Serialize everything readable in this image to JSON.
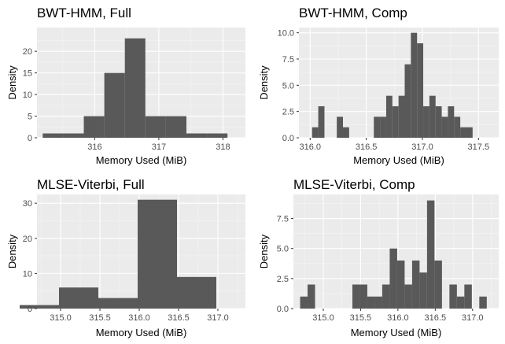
{
  "chart_data": [
    {
      "type": "bar",
      "title": "BWT-HMM, Full",
      "xlabel": "Memory Used (MiB)",
      "ylabel": "Density",
      "xlim": [
        315.1,
        318.35
      ],
      "ylim": [
        0,
        25.5
      ],
      "xticks": [
        316,
        317,
        318
      ],
      "xtick_labels": [
        "316",
        "317",
        "318"
      ],
      "yticks": [
        0,
        5,
        10,
        15,
        20
      ],
      "ytick_labels": [
        "0",
        "5",
        "10",
        "15",
        "20"
      ],
      "bin_width": 0.32,
      "x": [
        315.35,
        315.67,
        315.99,
        316.31,
        316.63,
        316.95,
        317.27,
        317.59,
        317.91
      ],
      "values": [
        1,
        1,
        5,
        15,
        23,
        5,
        5,
        1,
        1
      ],
      "grid": true
    },
    {
      "type": "bar",
      "title": "BWT-HMM, Comp",
      "xlabel": "Memory Used (MiB)",
      "ylabel": "Density",
      "xlim": [
        315.9,
        317.68
      ],
      "ylim": [
        0,
        10.5
      ],
      "xticks": [
        316.0,
        316.5,
        317.0,
        317.5
      ],
      "xtick_labels": [
        "316.0",
        "316.5",
        "317.0",
        "317.5"
      ],
      "yticks": [
        0,
        2.5,
        5.0,
        7.5,
        10.0
      ],
      "ytick_labels": [
        "0.0",
        "2.5",
        "5.0",
        "7.5",
        "10.0"
      ],
      "bin_width": 0.055,
      "x": [
        315.99,
        316.045,
        316.1,
        316.155,
        316.21,
        316.265,
        316.32,
        316.375,
        316.43,
        316.485,
        316.54,
        316.595,
        316.65,
        316.705,
        316.76,
        316.815,
        316.87,
        316.925,
        316.98,
        317.035,
        317.09,
        317.145,
        317.2,
        317.255,
        317.31,
        317.365,
        317.42,
        317.475,
        317.53,
        317.585
      ],
      "values": [
        0,
        1,
        3,
        0,
        0,
        2,
        1,
        0,
        0,
        0,
        0,
        2,
        2,
        4,
        3,
        4,
        7,
        10,
        9,
        3,
        4,
        3,
        2,
        3,
        2,
        1,
        1,
        0,
        0,
        0
      ],
      "grid": true
    },
    {
      "type": "bar",
      "title": "MLSE-Viterbi, Full",
      "xlabel": "Memory Used (MiB)",
      "ylabel": "Density",
      "xlim": [
        314.7,
        317.35
      ],
      "ylim": [
        0,
        32.5
      ],
      "xticks": [
        315.0,
        315.5,
        316.0,
        316.5,
        317.0
      ],
      "xtick_labels": [
        "315.0",
        "315.5",
        "316.0",
        "316.5",
        "317.0"
      ],
      "yticks": [
        0,
        10,
        20,
        30
      ],
      "ytick_labels": [
        "0",
        "10",
        "20",
        "30"
      ],
      "bin_width": 0.5,
      "x": [
        314.73,
        315.23,
        315.73,
        316.23,
        316.73,
        317.23
      ],
      "values": [
        1,
        6,
        3,
        31,
        9,
        0
      ],
      "grid": true
    },
    {
      "type": "bar",
      "title": "MLSE-Viterbi, Comp",
      "xlabel": "Memory Used (MiB)",
      "ylabel": "Density",
      "xlim": [
        314.6,
        317.35
      ],
      "ylim": [
        0,
        9.5
      ],
      "xticks": [
        315.0,
        315.5,
        316.0,
        316.5,
        317.0
      ],
      "xtick_labels": [
        "315.0",
        "315.5",
        "316.0",
        "316.5",
        "317.0"
      ],
      "yticks": [
        0.0,
        2.5,
        5.0,
        7.5
      ],
      "ytick_labels": [
        "0.0",
        "2.5",
        "5.0",
        "7.5"
      ],
      "bin_width": 0.1,
      "x": [
        314.74,
        314.84,
        314.94,
        315.04,
        315.14,
        315.24,
        315.34,
        315.44,
        315.54,
        315.64,
        315.74,
        315.84,
        315.94,
        316.04,
        316.14,
        316.24,
        316.34,
        316.44,
        316.54,
        316.64,
        316.74,
        316.84,
        316.94,
        317.04,
        317.14
      ],
      "values": [
        1,
        2,
        0,
        0,
        0,
        0,
        0,
        2,
        2,
        1,
        1,
        2,
        5,
        4,
        2,
        4,
        3,
        9,
        4,
        0,
        2,
        1,
        2,
        0,
        1
      ],
      "grid": true
    }
  ],
  "style": {
    "panel_bg": "#ebebeb",
    "grid_major": "#ffffff",
    "bar_fill": "#595959",
    "tick_color": "#333333"
  }
}
